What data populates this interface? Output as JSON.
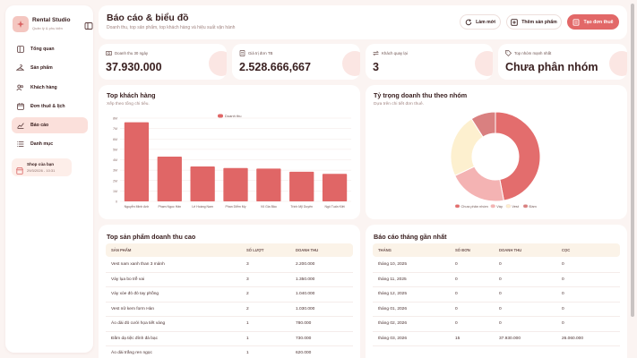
{
  "brand": {
    "title": "Rental Studio",
    "subtitle": "Quản lý & phụ kiện"
  },
  "nav": [
    {
      "label": "Tổng quan",
      "icon": "layout-icon"
    },
    {
      "label": "Sản phẩm",
      "icon": "hanger-icon"
    },
    {
      "label": "Khách hàng",
      "icon": "users-icon"
    },
    {
      "label": "Đơn thuê & lịch",
      "icon": "calendar-icon"
    },
    {
      "label": "Báo cáo",
      "icon": "chart-icon",
      "active": true
    },
    {
      "label": "Danh mục",
      "icon": "grid-icon"
    }
  ],
  "shop": {
    "title": "Shop của bạn",
    "time": "29/3/2026 - 10:31"
  },
  "header": {
    "title": "Báo cáo & biểu đồ",
    "subtitle": "Doanh thu, top sản phẩm, top khách hàng và hiệu suất vận hành",
    "refresh_label": "Làm mới",
    "add_product_label": "Thêm sản phẩm",
    "create_order_label": "Tạo đơn thuê"
  },
  "kpis": [
    {
      "label": "Doanh thu 30 ngày",
      "value": "37.930.000"
    },
    {
      "label": "Giá trị đơn TB",
      "value": "2.528.666,667"
    },
    {
      "label": "Khách quay lại",
      "value": "3"
    },
    {
      "label": "Top nhóm mạnh nhất",
      "value": "Chưa phân nhóm"
    }
  ],
  "top_customers": {
    "title": "Top khách hàng",
    "subtitle": "Xếp theo tổng chi tiêu."
  },
  "pie_card": {
    "title": "Tỷ trọng doanh thu theo nhóm",
    "subtitle": "Dựa trên chi tiết đơn thuê."
  },
  "chart_data": [
    {
      "type": "bar",
      "title": "Top khách hàng",
      "categories": [
        "Nguyễn Minh Anh",
        "Phạm Ngọc Hân",
        "Lê Hoàng Nam",
        "Phan Diễm My",
        "Võ Gia Bảo",
        "Trịnh Mỹ Duyên",
        "Ngô Tuấn Kiệt"
      ],
      "series": [
        {
          "name": "Doanh thu",
          "values": [
            7600000,
            4300000,
            3350000,
            3200000,
            3150000,
            2850000,
            2650000
          ]
        }
      ],
      "yticks": [
        "0",
        "1M",
        "2M",
        "3M",
        "4M",
        "5M",
        "6M",
        "7M",
        "8M"
      ],
      "ylim": [
        0,
        8000000
      ],
      "legend": "top-center",
      "grid": true,
      "color": "#e06666"
    },
    {
      "type": "pie",
      "style": "donut",
      "title": "Tỷ trọng doanh thu theo nhóm",
      "labels": [
        "Chưa phân nhóm",
        "Váy",
        "Vest",
        "Đầm"
      ],
      "values": [
        47,
        21,
        23,
        9
      ],
      "colors": [
        "#e36d6d",
        "#f4b3b3",
        "#fdf0cf",
        "#d98080"
      ],
      "legend": "bottom"
    }
  ],
  "top_products": {
    "title": "Top sản phẩm doanh thu cao",
    "columns": [
      "SẢN PHẨM",
      "SỐ LƯỢT",
      "DOANH THU"
    ],
    "rows": [
      [
        "Vest nam xanh than 3 mảnh",
        "3",
        "2.200.000"
      ],
      [
        "Váy lụa bo trễ vai",
        "3",
        "1.350.000"
      ],
      [
        "Váy xòe đỏ đỏ tay phồng",
        "2",
        "1.040.000"
      ],
      [
        "Vest nữ kem form Hàn",
        "2",
        "1.030.000"
      ],
      [
        "Áo dài đỏ cưới họa tiết vàng",
        "1",
        "780.000"
      ],
      [
        "Đầm dạ tiệc đính đá bạc",
        "1",
        "730.000"
      ],
      [
        "Áo dài trắng ren ngọc",
        "1",
        "620.000"
      ]
    ]
  },
  "monthly": {
    "title": "Báo cáo tháng gần nhất",
    "columns": [
      "THÁNG",
      "SỐ ĐƠN",
      "DOANH THU",
      "CỌC"
    ],
    "rows": [
      [
        "tháng 10, 2025",
        "0",
        "0",
        "0"
      ],
      [
        "tháng 11, 2025",
        "0",
        "0",
        "0"
      ],
      [
        "tháng 12, 2025",
        "0",
        "0",
        "0"
      ],
      [
        "tháng 01, 2026",
        "0",
        "0",
        "0"
      ],
      [
        "tháng 02, 2026",
        "0",
        "0",
        "0"
      ],
      [
        "tháng 03, 2026",
        "15",
        "37.930.000",
        "26.060.000"
      ]
    ]
  },
  "colors": {
    "accent": "#e26868",
    "background": "#fbf4f2",
    "active_nav": "#fbe0db"
  }
}
